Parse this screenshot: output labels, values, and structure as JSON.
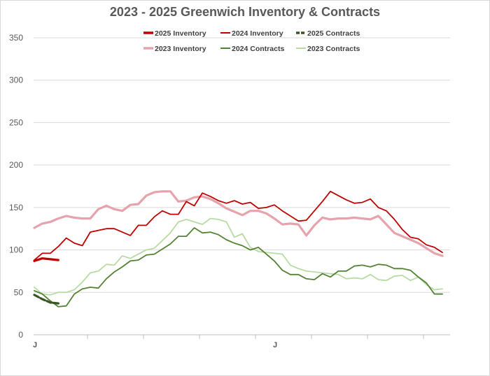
{
  "chart_data": {
    "type": "line",
    "title": "2023 - 2025 Greenwich Inventory & Contracts",
    "xlabel": "",
    "ylabel": "",
    "ylim": [
      0,
      350
    ],
    "yticks": [
      0,
      50,
      100,
      150,
      200,
      250,
      300,
      350
    ],
    "x_tick_labels": [
      "J",
      "J"
    ],
    "grid": "horizontal",
    "legend_position": "top",
    "series": [
      {
        "name": "2025 Inventory",
        "color": "#c00000",
        "style": "thick",
        "values": [
          87,
          90,
          89,
          88
        ]
      },
      {
        "name": "2024 Inventory",
        "color": "#c00000",
        "style": "solid",
        "values": [
          88,
          96,
          96,
          104,
          114,
          108,
          105,
          121,
          123,
          125,
          125,
          121,
          117,
          129,
          129,
          139,
          146,
          142,
          142,
          157,
          152,
          167,
          163,
          158,
          155,
          158,
          154,
          156,
          149,
          150,
          153,
          146,
          140,
          134,
          135,
          146,
          157,
          169,
          164,
          159,
          155,
          156,
          160,
          150,
          146,
          136,
          124,
          115,
          113,
          106,
          103,
          97
        ]
      },
      {
        "name": "2025 Contracts",
        "color": "#375623",
        "style": "thick-dash",
        "values": [
          47,
          42,
          38,
          37
        ]
      },
      {
        "name": "2023 Inventory",
        "color": "#e6a3ad",
        "style": "thick",
        "values": [
          126,
          131,
          133,
          137,
          140,
          138,
          137,
          137,
          148,
          152,
          148,
          146,
          153,
          154,
          164,
          168,
          169,
          169,
          157,
          158,
          162,
          163,
          160,
          155,
          149,
          145,
          141,
          146,
          146,
          143,
          137,
          130,
          131,
          130,
          117,
          129,
          138,
          136,
          137,
          137,
          138,
          137,
          136,
          140,
          130,
          120,
          116,
          112,
          108,
          102,
          96,
          93
        ]
      },
      {
        "name": "2024 Contracts",
        "color": "#548235",
        "style": "solid",
        "values": [
          52,
          48,
          40,
          33,
          34,
          48,
          54,
          56,
          55,
          66,
          74,
          80,
          87,
          88,
          94,
          95,
          101,
          107,
          116,
          116,
          126,
          120,
          121,
          118,
          112,
          108,
          105,
          100,
          103,
          95,
          87,
          76,
          71,
          71,
          66,
          65,
          72,
          68,
          75,
          75,
          81,
          82,
          80,
          83,
          82,
          78,
          78,
          76,
          68,
          61,
          48,
          48
        ]
      },
      {
        "name": "2023 Contracts",
        "color": "#b7dba2",
        "style": "solid",
        "values": [
          56,
          48,
          47,
          50,
          50,
          53,
          62,
          73,
          75,
          83,
          82,
          93,
          90,
          95,
          100,
          102,
          111,
          120,
          133,
          136,
          133,
          130,
          137,
          136,
          133,
          115,
          119,
          103,
          98,
          97,
          96,
          95,
          82,
          78,
          75,
          74,
          73,
          72,
          71,
          66,
          67,
          66,
          71,
          65,
          64,
          69,
          70,
          64,
          68,
          59,
          53,
          54
        ]
      }
    ]
  }
}
